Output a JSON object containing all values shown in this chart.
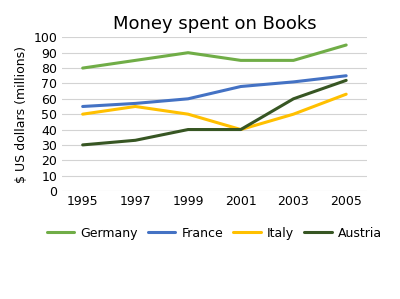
{
  "title": "Money spent on Books",
  "ylabel": "$ US dollars (millions)",
  "years": [
    1995,
    1997,
    1999,
    2001,
    2003,
    2005
  ],
  "series": {
    "Germany": {
      "values": [
        80,
        85,
        90,
        85,
        85,
        95
      ],
      "color": "#70ad47",
      "marker": null
    },
    "France": {
      "values": [
        55,
        57,
        60,
        68,
        71,
        75
      ],
      "color": "#4472c4",
      "marker": null
    },
    "Italy": {
      "values": [
        50,
        55,
        50,
        40,
        50,
        63
      ],
      "color": "#ffc000",
      "marker": null
    },
    "Austria": {
      "values": [
        30,
        33,
        40,
        40,
        60,
        72
      ],
      "color": "#375623",
      "marker": null
    }
  },
  "ylim": [
    0,
    100
  ],
  "yticks": [
    0,
    10,
    20,
    30,
    40,
    50,
    60,
    70,
    80,
    90,
    100
  ],
  "xticks": [
    1995,
    1997,
    1999,
    2001,
    2003,
    2005
  ],
  "background_color": "#ffffff",
  "grid_color": "#d3d3d3",
  "legend_order": [
    "Germany",
    "France",
    "Italy",
    "Austria"
  ],
  "title_fontsize": 13,
  "axis_fontsize": 9,
  "legend_fontsize": 9,
  "linewidth": 2.2
}
